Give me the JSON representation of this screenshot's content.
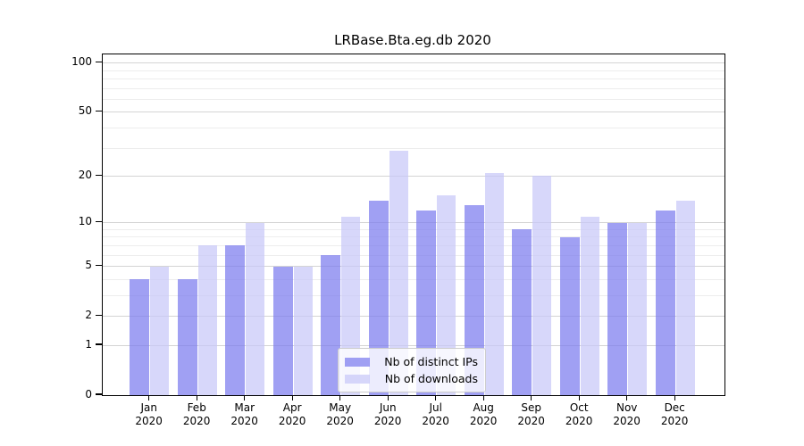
{
  "title": "LRBase.Bta.eg.db 2020",
  "chart_data": {
    "type": "bar",
    "title": "LRBase.Bta.eg.db 2020",
    "categories": [
      "Jan",
      "Feb",
      "Mar",
      "Apr",
      "May",
      "Jun",
      "Jul",
      "Aug",
      "Sep",
      "Oct",
      "Nov",
      "Dec"
    ],
    "year": "2020",
    "series": [
      {
        "name": "Nb of distinct IPs",
        "color_rgb": "124,124,238",
        "alpha": 0.72,
        "values": [
          4,
          4,
          7,
          5,
          6,
          14,
          12,
          13,
          9,
          8,
          10,
          12
        ]
      },
      {
        "name": "Nb of downloads",
        "color_rgb": "199,199,248",
        "alpha": 0.72,
        "values": [
          5,
          7,
          10,
          5,
          11,
          29,
          15,
          21,
          20,
          11,
          10,
          14
        ]
      }
    ],
    "xlabel": "",
    "ylabel": "",
    "y_axis": {
      "scale": "log1p",
      "ticks": [
        0,
        1,
        2,
        5,
        10,
        20,
        50,
        100
      ],
      "minor_ticks": [
        3,
        4,
        6,
        7,
        8,
        9,
        30,
        40,
        60,
        70,
        80,
        90
      ],
      "ylim": [
        0,
        113
      ]
    },
    "grid": "on",
    "legend": {
      "position": "lower center",
      "entries": [
        "Nb of distinct IPs",
        "Nb of downloads"
      ]
    }
  }
}
